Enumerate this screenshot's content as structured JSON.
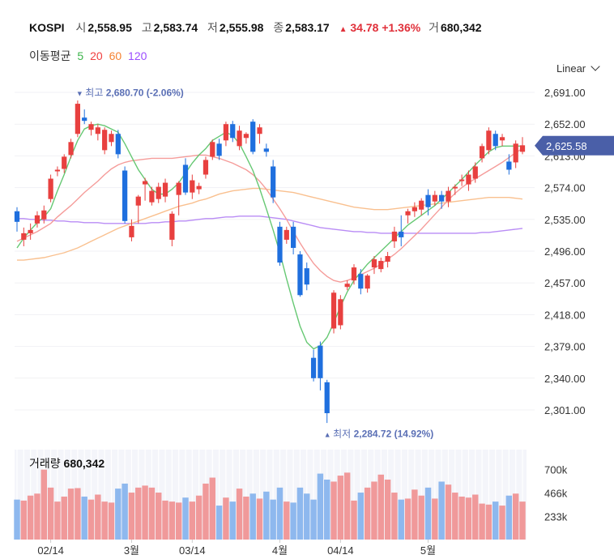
{
  "header": {
    "symbol": "KOSPI",
    "open_label": "시",
    "open": "2,558.95",
    "high_label": "고",
    "high": "2,583.74",
    "low_label": "저",
    "low": "2,555.98",
    "close_label": "종",
    "close": "2,583.17",
    "change_arrow": "▲",
    "change": "34.78",
    "change_pct": "+1.36%",
    "volume_label": "거",
    "volume": "680,342"
  },
  "moving_averages": {
    "label": "이동평균",
    "periods": [
      {
        "value": "5",
        "color": "#3cb44b"
      },
      {
        "value": "20",
        "color": "#f04040"
      },
      {
        "value": "60",
        "color": "#f58231"
      },
      {
        "value": "120",
        "color": "#9b4dff"
      }
    ]
  },
  "scale_selector": "Linear",
  "chart_data": {
    "type": "candlestick",
    "title": "KOSPI",
    "ylim": [
      2285,
      2700
    ],
    "y_ticks": [
      "2,691.00",
      "2,652.00",
      "2,613.00",
      "2,574.00",
      "2,535.00",
      "2,496.00",
      "2,457.00",
      "2,418.00",
      "2,379.00",
      "2,340.00",
      "2,301.00"
    ],
    "y_tick_values": [
      2691,
      2652,
      2613,
      2574,
      2535,
      2496,
      2457,
      2418,
      2379,
      2340,
      2301
    ],
    "current_price": {
      "value": 2625.58,
      "label": "2,625.58"
    },
    "high_annotation": {
      "marker": "▼",
      "label": "최고",
      "value": "2,680.70 (-2.06%)",
      "price": 2680.7,
      "index": 9
    },
    "low_annotation": {
      "marker": "▲",
      "label": "최저",
      "value": "2,284.72 (14.92%)",
      "price": 2284.72,
      "index": 46
    },
    "x_labels": [
      {
        "label": "02/14",
        "index": 5
      },
      {
        "label": "3월",
        "index": 17
      },
      {
        "label": "03/14",
        "index": 26
      },
      {
        "label": "4월",
        "index": 39
      },
      {
        "label": "04/14",
        "index": 48
      },
      {
        "label": "5월",
        "index": 61
      }
    ],
    "candles": [
      {
        "o": 2545,
        "h": 2550,
        "l": 2520,
        "c": 2532
      },
      {
        "o": 2510,
        "h": 2525,
        "l": 2502,
        "c": 2518
      },
      {
        "o": 2518,
        "h": 2530,
        "l": 2510,
        "c": 2522
      },
      {
        "o": 2530,
        "h": 2545,
        "l": 2525,
        "c": 2540
      },
      {
        "o": 2535,
        "h": 2552,
        "l": 2530,
        "c": 2546
      },
      {
        "o": 2560,
        "h": 2590,
        "l": 2556,
        "c": 2585
      },
      {
        "o": 2594,
        "h": 2600,
        "l": 2588,
        "c": 2596
      },
      {
        "o": 2597,
        "h": 2615,
        "l": 2592,
        "c": 2612
      },
      {
        "o": 2614,
        "h": 2634,
        "l": 2610,
        "c": 2630
      },
      {
        "o": 2640,
        "h": 2681,
        "l": 2636,
        "c": 2677
      },
      {
        "o": 2660,
        "h": 2670,
        "l": 2652,
        "c": 2656
      },
      {
        "o": 2645,
        "h": 2655,
        "l": 2638,
        "c": 2652
      },
      {
        "o": 2640,
        "h": 2652,
        "l": 2632,
        "c": 2648
      },
      {
        "o": 2620,
        "h": 2648,
        "l": 2615,
        "c": 2645
      },
      {
        "o": 2630,
        "h": 2644,
        "l": 2625,
        "c": 2640
      },
      {
        "o": 2640,
        "h": 2645,
        "l": 2610,
        "c": 2615
      },
      {
        "o": 2595,
        "h": 2600,
        "l": 2530,
        "c": 2533
      },
      {
        "o": 2513,
        "h": 2535,
        "l": 2508,
        "c": 2527
      },
      {
        "o": 2552,
        "h": 2565,
        "l": 2530,
        "c": 2563
      },
      {
        "o": 2578,
        "h": 2586,
        "l": 2558,
        "c": 2582
      },
      {
        "o": 2556,
        "h": 2575,
        "l": 2552,
        "c": 2570
      },
      {
        "o": 2560,
        "h": 2580,
        "l": 2555,
        "c": 2575
      },
      {
        "o": 2563,
        "h": 2585,
        "l": 2556,
        "c": 2580
      },
      {
        "o": 2510,
        "h": 2545,
        "l": 2502,
        "c": 2542
      },
      {
        "o": 2565,
        "h": 2582,
        "l": 2540,
        "c": 2580
      },
      {
        "o": 2602,
        "h": 2610,
        "l": 2565,
        "c": 2568
      },
      {
        "o": 2568,
        "h": 2590,
        "l": 2560,
        "c": 2583
      },
      {
        "o": 2572,
        "h": 2580,
        "l": 2566,
        "c": 2576
      },
      {
        "o": 2590,
        "h": 2612,
        "l": 2585,
        "c": 2608
      },
      {
        "o": 2612,
        "h": 2633,
        "l": 2608,
        "c": 2630
      },
      {
        "o": 2628,
        "h": 2634,
        "l": 2608,
        "c": 2613
      },
      {
        "o": 2632,
        "h": 2655,
        "l": 2625,
        "c": 2652
      },
      {
        "o": 2652,
        "h": 2656,
        "l": 2630,
        "c": 2635
      },
      {
        "o": 2625,
        "h": 2650,
        "l": 2620,
        "c": 2644
      },
      {
        "o": 2635,
        "h": 2642,
        "l": 2628,
        "c": 2640
      },
      {
        "o": 2655,
        "h": 2658,
        "l": 2615,
        "c": 2618
      },
      {
        "o": 2640,
        "h": 2652,
        "l": 2628,
        "c": 2648
      },
      {
        "o": 2622,
        "h": 2628,
        "l": 2612,
        "c": 2618
      },
      {
        "o": 2600,
        "h": 2608,
        "l": 2555,
        "c": 2562
      },
      {
        "o": 2526,
        "h": 2532,
        "l": 2478,
        "c": 2482
      },
      {
        "o": 2510,
        "h": 2526,
        "l": 2505,
        "c": 2522
      },
      {
        "o": 2526,
        "h": 2532,
        "l": 2492,
        "c": 2500
      },
      {
        "o": 2492,
        "h": 2496,
        "l": 2440,
        "c": 2442
      },
      {
        "o": 2475,
        "h": 2482,
        "l": 2448,
        "c": 2455
      },
      {
        "o": 2365,
        "h": 2375,
        "l": 2336,
        "c": 2340
      },
      {
        "o": 2380,
        "h": 2385,
        "l": 2325,
        "c": 2340
      },
      {
        "o": 2335,
        "h": 2338,
        "l": 2285,
        "c": 2297
      },
      {
        "o": 2401,
        "h": 2448,
        "l": 2395,
        "c": 2445
      },
      {
        "o": 2405,
        "h": 2442,
        "l": 2400,
        "c": 2437
      },
      {
        "o": 2452,
        "h": 2460,
        "l": 2448,
        "c": 2456
      },
      {
        "o": 2460,
        "h": 2480,
        "l": 2455,
        "c": 2476
      },
      {
        "o": 2468,
        "h": 2474,
        "l": 2443,
        "c": 2450
      },
      {
        "o": 2450,
        "h": 2468,
        "l": 2445,
        "c": 2466
      },
      {
        "o": 2476,
        "h": 2490,
        "l": 2468,
        "c": 2486
      },
      {
        "o": 2474,
        "h": 2488,
        "l": 2470,
        "c": 2484
      },
      {
        "o": 2483,
        "h": 2495,
        "l": 2476,
        "c": 2490
      },
      {
        "o": 2508,
        "h": 2526,
        "l": 2500,
        "c": 2520
      },
      {
        "o": 2520,
        "h": 2540,
        "l": 2502,
        "c": 2513
      },
      {
        "o": 2540,
        "h": 2548,
        "l": 2530,
        "c": 2545
      },
      {
        "o": 2545,
        "h": 2556,
        "l": 2538,
        "c": 2550
      },
      {
        "o": 2547,
        "h": 2561,
        "l": 2540,
        "c": 2558
      },
      {
        "o": 2565,
        "h": 2572,
        "l": 2540,
        "c": 2550
      },
      {
        "o": 2557,
        "h": 2570,
        "l": 2552,
        "c": 2565
      },
      {
        "o": 2565,
        "h": 2570,
        "l": 2548,
        "c": 2557
      },
      {
        "o": 2557,
        "h": 2575,
        "l": 2550,
        "c": 2570
      },
      {
        "o": 2573,
        "h": 2578,
        "l": 2565,
        "c": 2575
      },
      {
        "o": 2582,
        "h": 2590,
        "l": 2576,
        "c": 2584
      },
      {
        "o": 2578,
        "h": 2595,
        "l": 2570,
        "c": 2590
      },
      {
        "o": 2585,
        "h": 2605,
        "l": 2580,
        "c": 2600
      },
      {
        "o": 2610,
        "h": 2628,
        "l": 2605,
        "c": 2625
      },
      {
        "o": 2620,
        "h": 2648,
        "l": 2615,
        "c": 2644
      },
      {
        "o": 2640,
        "h": 2644,
        "l": 2620,
        "c": 2625
      },
      {
        "o": 2632,
        "h": 2640,
        "l": 2625,
        "c": 2636
      },
      {
        "o": 2606,
        "h": 2615,
        "l": 2590,
        "c": 2596
      },
      {
        "o": 2605,
        "h": 2632,
        "l": 2598,
        "c": 2628
      },
      {
        "o": 2618,
        "h": 2636,
        "l": 2615,
        "c": 2626
      }
    ],
    "ma5": [
      2500,
      2512,
      2522,
      2531,
      2538,
      2548,
      2570,
      2590,
      2612,
      2632,
      2646,
      2650,
      2652,
      2650,
      2646,
      2642,
      2628,
      2612,
      2596,
      2584,
      2572,
      2566,
      2566,
      2572,
      2580,
      2592,
      2604,
      2614,
      2622,
      2632,
      2637,
      2642,
      2638,
      2628,
      2612,
      2595,
      2573,
      2548,
      2522,
      2494,
      2462,
      2432,
      2404,
      2384,
      2376,
      2380,
      2390,
      2408,
      2428,
      2446,
      2460,
      2470,
      2480,
      2488,
      2496,
      2504,
      2512,
      2520,
      2528,
      2534,
      2540,
      2546,
      2552,
      2560,
      2568,
      2576,
      2584,
      2593,
      2602,
      2610,
      2618,
      2623,
      2625,
      2625,
      2625,
      2625
    ],
    "ma20": [
      2508,
      2512,
      2516,
      2520,
      2525,
      2530,
      2538,
      2545,
      2552,
      2560,
      2568,
      2575,
      2582,
      2590,
      2597,
      2602,
      2605,
      2607,
      2608,
      2609,
      2610,
      2610,
      2610,
      2610,
      2611,
      2612,
      2613,
      2614,
      2614,
      2612,
      2610,
      2607,
      2604,
      2600,
      2596,
      2590,
      2582,
      2572,
      2560,
      2548,
      2535,
      2520,
      2506,
      2493,
      2481,
      2472,
      2465,
      2460,
      2458,
      2460,
      2463,
      2467,
      2471,
      2475,
      2480,
      2486,
      2492,
      2499,
      2507,
      2515,
      2523,
      2532,
      2541,
      2550,
      2559,
      2567,
      2574,
      2580,
      2585,
      2590,
      2595,
      2600,
      2605,
      2611,
      2617,
      2622
    ],
    "ma60": [
      2485,
      2485,
      2486,
      2487,
      2488,
      2490,
      2492,
      2494,
      2497,
      2500,
      2504,
      2508,
      2512,
      2516,
      2520,
      2524,
      2527,
      2530,
      2533,
      2536,
      2539,
      2542,
      2545,
      2548,
      2551,
      2553,
      2555,
      2558,
      2560,
      2563,
      2566,
      2568,
      2570,
      2571,
      2572,
      2573,
      2573,
      2572,
      2571,
      2570,
      2569,
      2568,
      2566,
      2564,
      2562,
      2560,
      2558,
      2556,
      2554,
      2552,
      2550,
      2549,
      2548,
      2547,
      2547,
      2547,
      2548,
      2549,
      2550,
      2551,
      2552,
      2553,
      2554,
      2555,
      2556,
      2557,
      2558,
      2559,
      2560,
      2561,
      2562,
      2562,
      2562,
      2562,
      2561,
      2560
    ],
    "ma120": [
      2536,
      2536,
      2535,
      2535,
      2534,
      2534,
      2533,
      2533,
      2532,
      2532,
      2531,
      2531,
      2531,
      2530,
      2530,
      2530,
      2530,
      2530,
      2530,
      2530,
      2531,
      2531,
      2532,
      2532,
      2533,
      2533,
      2534,
      2535,
      2536,
      2536,
      2537,
      2538,
      2538,
      2539,
      2539,
      2539,
      2539,
      2538,
      2537,
      2536,
      2535,
      2533,
      2531,
      2529,
      2527,
      2525,
      2524,
      2523,
      2522,
      2521,
      2520,
      2520,
      2519,
      2519,
      2518,
      2518,
      2518,
      2518,
      2518,
      2518,
      2518,
      2518,
      2518,
      2518,
      2518,
      2518,
      2518,
      2518,
      2518,
      2519,
      2519,
      2520,
      2521,
      2522,
      2523,
      2524
    ],
    "volume": {
      "label": "거래량",
      "value": "680,342",
      "y_ticks": [
        "700k",
        "466k",
        "233k"
      ],
      "y_tick_values": [
        700,
        466,
        233
      ],
      "ylim": [
        0,
        900
      ],
      "values": [
        400,
        390,
        440,
        460,
        700,
        520,
        380,
        430,
        510,
        515,
        430,
        400,
        450,
        380,
        370,
        510,
        560,
        470,
        520,
        540,
        520,
        470,
        390,
        380,
        370,
        420,
        380,
        440,
        560,
        620,
        340,
        420,
        380,
        510,
        430,
        460,
        410,
        480,
        400,
        520,
        380,
        370,
        520,
        460,
        400,
        660,
        600,
        580,
        640,
        670,
        390,
        470,
        520,
        580,
        650,
        600,
        470,
        400,
        410,
        500,
        440,
        520,
        410,
        580,
        550,
        470,
        430,
        420,
        450,
        360,
        350,
        380,
        340,
        440,
        460,
        380
      ]
    }
  }
}
